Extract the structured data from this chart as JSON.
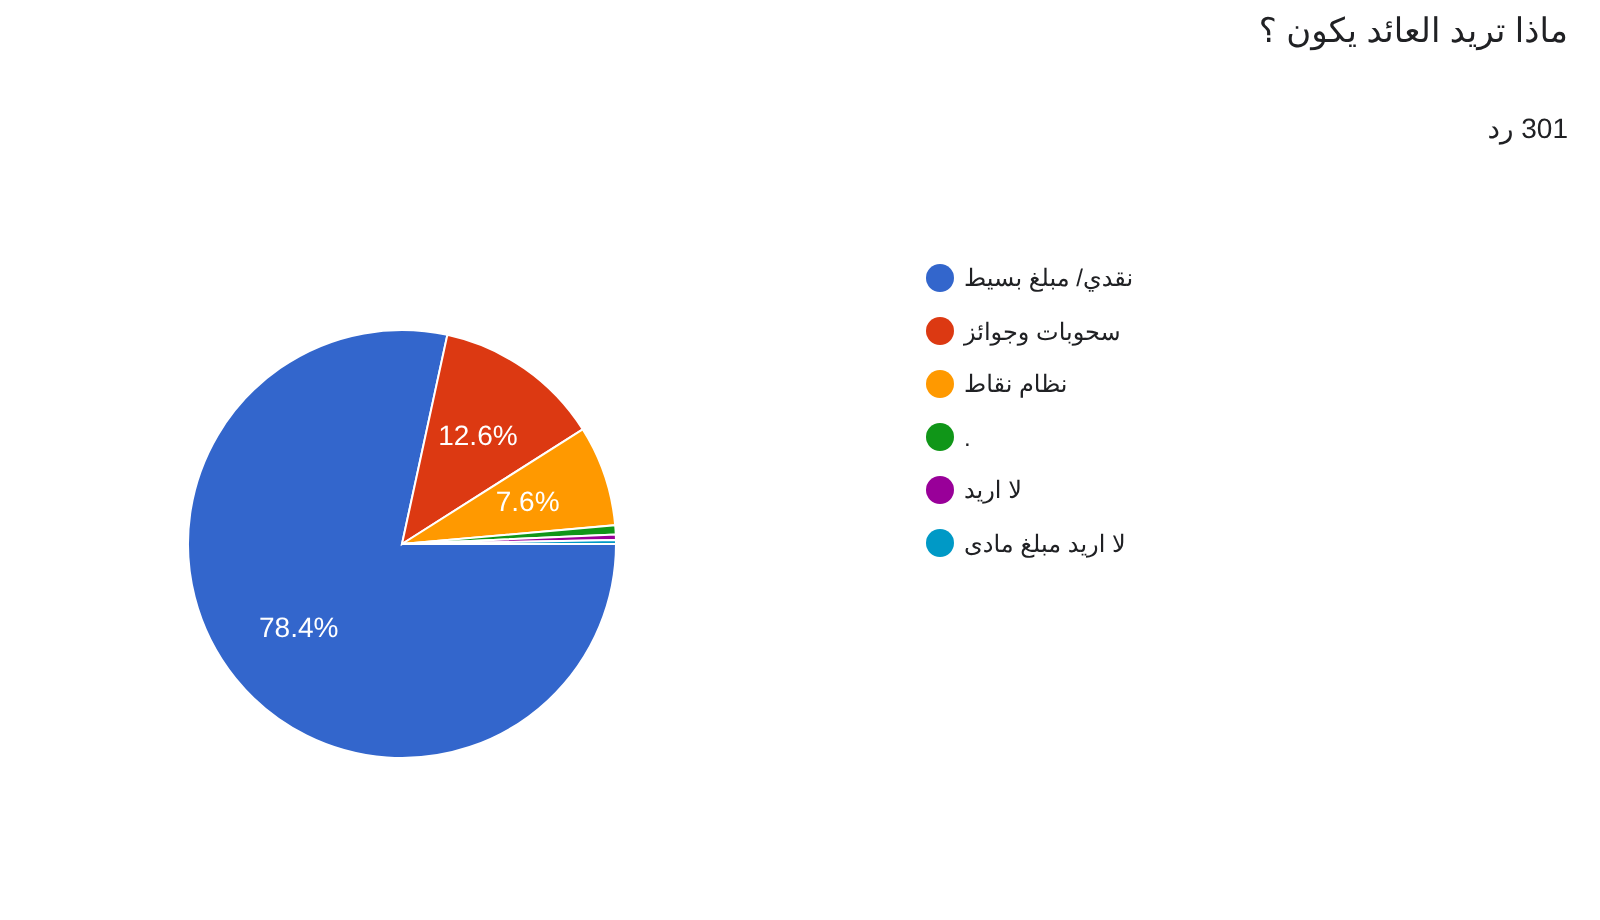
{
  "chart_data": {
    "type": "pie",
    "title": "ماذا تريد العائد يكون ؟",
    "subtitle": "301 رد",
    "categories": [
      "نقدي/ مبلغ بسيط",
      "سحوبات وجوائز",
      "نظام نقاط",
      ".",
      "لا اريد",
      "لا اريد مبلغ مادى"
    ],
    "values": [
      78.4,
      12.6,
      7.6,
      0.7,
      0.4,
      0.3
    ],
    "colors": [
      "#3366cc",
      "#dc3912",
      "#ff9900",
      "#109618",
      "#990099",
      "#0099c6"
    ],
    "value_labels": [
      "78.4%",
      "12.6%",
      "7.6%",
      null,
      null,
      null
    ],
    "legend": "right"
  }
}
